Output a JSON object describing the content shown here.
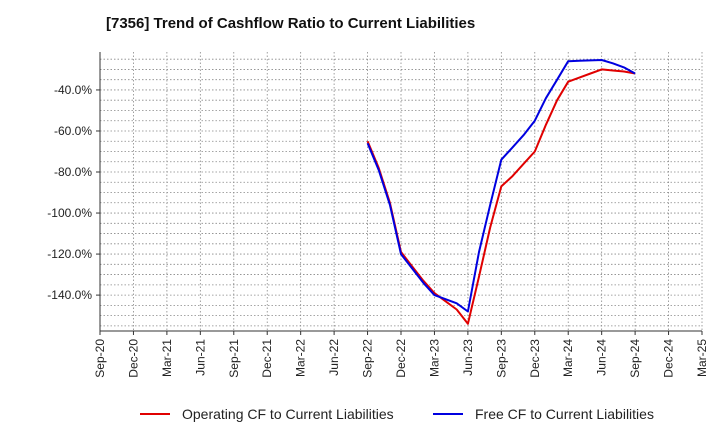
{
  "chart_data": {
    "type": "line",
    "title": "[7356]  Trend of Cashflow Ratio to Current Liabilities",
    "xlabel": "",
    "ylabel": "",
    "x_ticks": [
      "Sep-20",
      "Dec-20",
      "Mar-21",
      "Jun-21",
      "Sep-21",
      "Dec-21",
      "Mar-22",
      "Jun-22",
      "Sep-22",
      "Dec-22",
      "Mar-23",
      "Jun-23",
      "Sep-23",
      "Dec-23",
      "Mar-24",
      "Jun-24",
      "Sep-24",
      "Dec-24",
      "Mar-25"
    ],
    "y_ticks": [
      -40,
      -60,
      -80,
      -100,
      -120,
      -140
    ],
    "y_tick_labels": [
      "-40.0%",
      "-60.0%",
      "-80.0%",
      "-100.0%",
      "-120.0%",
      "-140.0%"
    ],
    "ylim": [
      -157.5,
      -21.5
    ],
    "grid": true,
    "legend_position": "bottom",
    "series": [
      {
        "name": "Operating CF to Current Liabilities",
        "color": "#e00000",
        "x": [
          "Sep-22",
          "Oct-22",
          "Nov-22",
          "Dec-22",
          "Jan-23",
          "Feb-23",
          "Mar-23",
          "Apr-23",
          "May-23",
          "Jun-23",
          "Jul-23",
          "Aug-23",
          "Sep-23",
          "Oct-23",
          "Nov-23",
          "Dec-23",
          "Jan-24",
          "Feb-24",
          "Mar-24",
          "Apr-24",
          "May-24",
          "Jun-24",
          "Jul-24",
          "Aug-24",
          "Sep-24"
        ],
        "values": [
          -65,
          -78,
          -95,
          -119,
          -126,
          -133,
          -139,
          -143,
          -147,
          -154,
          -131,
          -107,
          -87,
          -82,
          -76,
          -70,
          -57,
          -45,
          -36,
          -34,
          -32,
          -30,
          -30.5,
          -31,
          -32
        ]
      },
      {
        "name": "Free CF to Current Liabilities",
        "color": "#0000e0",
        "x": [
          "Sep-22",
          "Oct-22",
          "Nov-22",
          "Dec-22",
          "Jan-23",
          "Feb-23",
          "Mar-23",
          "Apr-23",
          "May-23",
          "Jun-23",
          "Jul-23",
          "Aug-23",
          "Sep-23",
          "Oct-23",
          "Nov-23",
          "Dec-23",
          "Jan-24",
          "Feb-24",
          "Mar-24",
          "Apr-24",
          "May-24",
          "Jun-24",
          "Jul-24",
          "Aug-24",
          "Sep-24"
        ],
        "values": [
          -66,
          -79,
          -96,
          -120,
          -127,
          -134,
          -140,
          -142,
          -144,
          -148,
          -119,
          -96,
          -74,
          -68,
          -62,
          -55,
          -44,
          -35,
          -26,
          -25.8,
          -25.6,
          -25.4,
          -27,
          -29,
          -32
        ]
      }
    ]
  }
}
